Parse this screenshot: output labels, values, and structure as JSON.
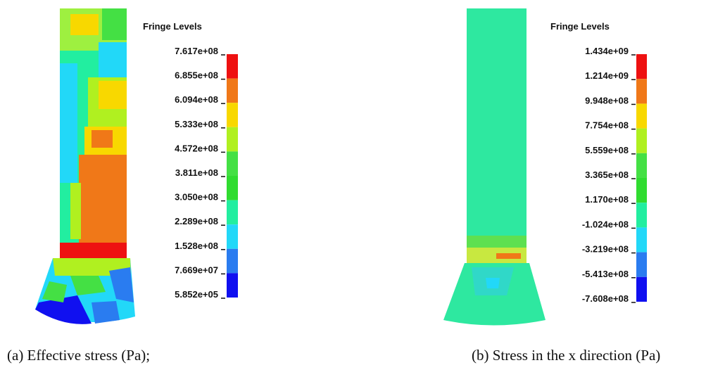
{
  "panels": [
    {
      "legend": {
        "title": "Fringe Levels",
        "levels": [
          "7.617e+08",
          "6.855e+08",
          "6.094e+08",
          "5.333e+08",
          "4.572e+08",
          "3.811e+08",
          "3.050e+08",
          "2.289e+08",
          "1.528e+08",
          "7.669e+07",
          "5.852e+05"
        ],
        "band_colors": [
          "#ee1111",
          "#f07818",
          "#f8d800",
          "#b0f020",
          "#44e044",
          "#30dc30",
          "#22eea0",
          "#22d8f8",
          "#2a7cf0",
          "#1010f0"
        ]
      },
      "caption": "(a)  Effective stress (Pa);"
    },
    {
      "legend": {
        "title": "Fringe Levels",
        "levels": [
          "1.434e+09",
          "1.214e+09",
          "9.948e+08",
          "7.754e+08",
          "5.559e+08",
          "3.365e+08",
          "1.170e+08",
          "-1.024e+08",
          "-3.219e+08",
          "-5.413e+08",
          "-7.608e+08"
        ],
        "band_colors": [
          "#ee1111",
          "#f07818",
          "#f8d800",
          "#b0f020",
          "#44e044",
          "#30dc30",
          "#22eea0",
          "#22d8f8",
          "#2a7cf0",
          "#1010f0"
        ]
      },
      "caption": "(b) Stress in the x direction (Pa)"
    }
  ]
}
